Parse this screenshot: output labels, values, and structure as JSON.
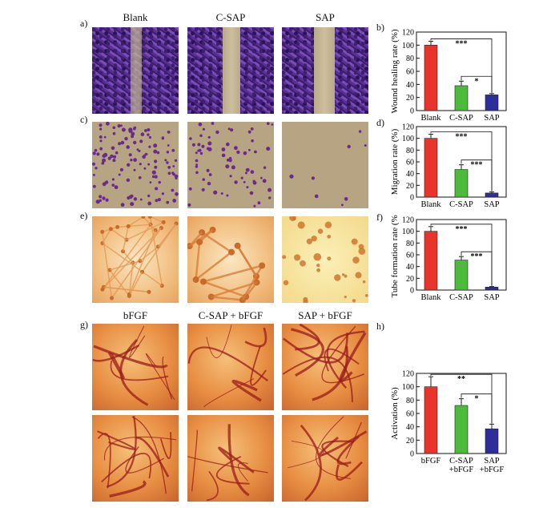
{
  "panel_labels": {
    "a": "a)",
    "b": "b)",
    "c": "c)",
    "d": "d)",
    "e": "e)",
    "f": "f)",
    "g": "g)",
    "h": "h)"
  },
  "top_columns": [
    "Blank",
    "C-SAP",
    "SAP"
  ],
  "bottom_columns": [
    "bFGF",
    "C-SAP + bFGF",
    "SAP + bFGF"
  ],
  "colors": {
    "red": "#e8342a",
    "green": "#4cbb3c",
    "blue": "#2e2e9a"
  },
  "chart_data": [
    {
      "type": "bar",
      "panel": "b",
      "categories": [
        "Blank",
        "C-SAP",
        "SAP"
      ],
      "values": [
        100,
        38,
        24
      ],
      "errors": [
        6,
        7,
        2
      ],
      "ylabel": "Wound healing rate (%)",
      "ylim": [
        0,
        120
      ],
      "yticks": [
        "0",
        "20",
        "40",
        "60",
        "80",
        "100",
        "120"
      ],
      "significance": [
        {
          "from": 0,
          "to": 2,
          "text": "***"
        },
        {
          "from": 1,
          "to": 2,
          "text": "*"
        }
      ]
    },
    {
      "type": "bar",
      "panel": "d",
      "categories": [
        "Blank",
        "C-SAP",
        "SAP"
      ],
      "values": [
        100,
        47,
        7
      ],
      "errors": [
        7,
        8,
        2
      ],
      "ylabel": "Migration rate (%)",
      "ylim": [
        0,
        120
      ],
      "yticks": [
        "0",
        "20",
        "40",
        "60",
        "80",
        "100",
        "120"
      ],
      "significance": [
        {
          "from": 0,
          "to": 2,
          "text": "***"
        },
        {
          "from": 1,
          "to": 2,
          "text": "***"
        }
      ]
    },
    {
      "type": "bar",
      "panel": "f",
      "categories": [
        "Blank",
        "C-SAP",
        "SAP"
      ],
      "values": [
        100,
        51,
        5
      ],
      "errors": [
        8,
        6,
        1
      ],
      "ylabel": "Tube formation rate (%)",
      "ylim": [
        0,
        120
      ],
      "yticks": [
        "0",
        "20",
        "40",
        "60",
        "80",
        "100",
        "120"
      ],
      "significance": [
        {
          "from": 0,
          "to": 2,
          "text": "***"
        },
        {
          "from": 1,
          "to": 2,
          "text": "***"
        }
      ]
    },
    {
      "type": "bar",
      "panel": "h",
      "categories": [
        "bFGF",
        "C-SAP\n+bFGF",
        "SAP\n+bFGF"
      ],
      "values": [
        100,
        72,
        37
      ],
      "errors": [
        15,
        10,
        7
      ],
      "ylabel": "Activation (%)",
      "ylim": [
        0,
        120
      ],
      "yticks": [
        "0",
        "20",
        "40",
        "60",
        "80",
        "100",
        "120"
      ],
      "significance": [
        {
          "from": 0,
          "to": 2,
          "text": "**"
        },
        {
          "from": 1,
          "to": 2,
          "text": "*"
        }
      ]
    }
  ]
}
